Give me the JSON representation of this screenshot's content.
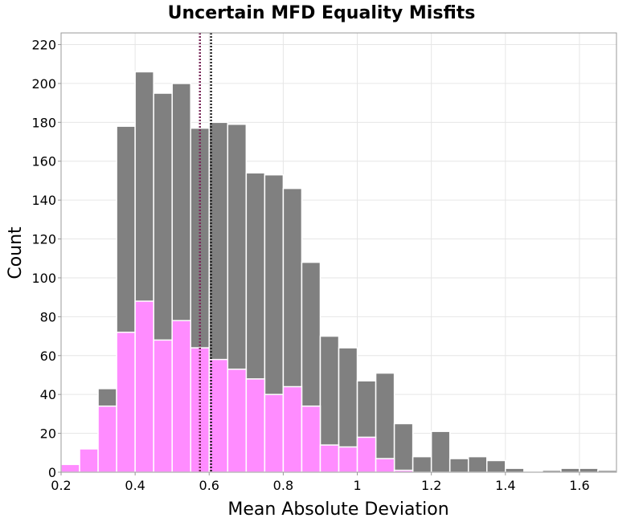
{
  "chart_data": {
    "type": "bar",
    "title": "Uncertain MFD Equality Misfits",
    "xlabel": "Mean Absolute Deviation",
    "ylabel": "Count",
    "xlim": [
      0.2,
      1.7
    ],
    "ylim": [
      0,
      226
    ],
    "xticks": [
      0.2,
      0.4,
      0.6,
      0.8,
      1.0,
      1.2,
      1.4,
      1.6
    ],
    "xtick_labels": [
      "0.2",
      "0.4",
      "0.6",
      "0.8",
      "1",
      "1.2",
      "1.4",
      "1.6"
    ],
    "yticks": [
      0,
      20,
      40,
      60,
      80,
      100,
      120,
      140,
      160,
      180,
      200,
      220
    ],
    "ytick_labels": [
      "0",
      "20",
      "40",
      "60",
      "80",
      "100",
      "120",
      "140",
      "160",
      "180",
      "200",
      "220"
    ],
    "bin_width": 0.05,
    "bin_centers": [
      0.225,
      0.275,
      0.325,
      0.375,
      0.425,
      0.475,
      0.525,
      0.575,
      0.625,
      0.675,
      0.725,
      0.775,
      0.825,
      0.875,
      0.925,
      0.975,
      1.025,
      1.075,
      1.125,
      1.175,
      1.225,
      1.275,
      1.325,
      1.375,
      1.425,
      1.475,
      1.525,
      1.575,
      1.625,
      1.675
    ],
    "series": [
      {
        "color": "#808080",
        "values": [
          4,
          12,
          43,
          178,
          206,
          195,
          200,
          177,
          180,
          179,
          154,
          153,
          146,
          108,
          70,
          64,
          47,
          51,
          25,
          8,
          21,
          7,
          8,
          6,
          2,
          0,
          1,
          2,
          2,
          1
        ]
      },
      {
        "color": "#ff8cff",
        "values": [
          4,
          12,
          34,
          72,
          88,
          68,
          78,
          64,
          58,
          53,
          48,
          40,
          44,
          34,
          14,
          13,
          18,
          7,
          1,
          0,
          0,
          0,
          0,
          0,
          0,
          0,
          0,
          0,
          0,
          0
        ]
      }
    ],
    "vlines": [
      {
        "x": 0.575,
        "color": "#7a2a5a",
        "style": "dotted"
      },
      {
        "x": 0.605,
        "color": "#222222",
        "style": "dotted"
      }
    ],
    "grid": true,
    "legend": "none"
  }
}
